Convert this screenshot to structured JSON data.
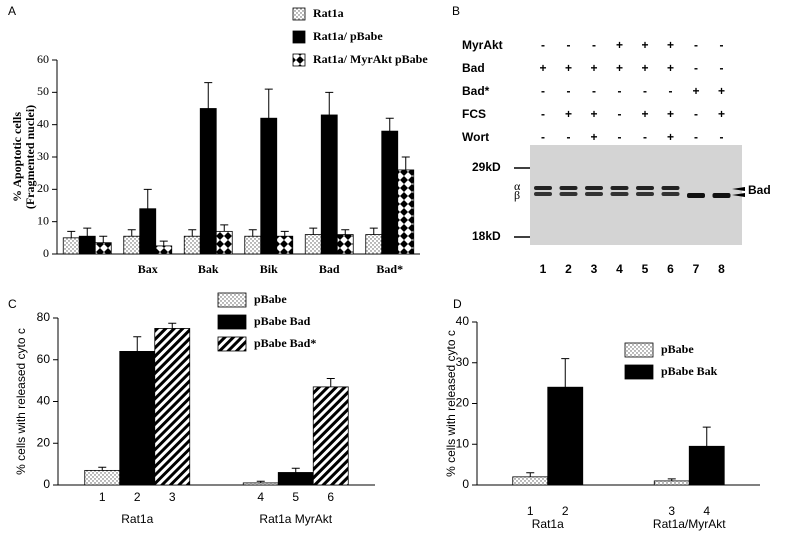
{
  "chart_data": [
    {
      "type": "bar",
      "panel_label": "A",
      "ylabel": "% Apoptotic cells",
      "ylabel2": "(Fragmented nuclei)",
      "categories": [
        null,
        "Bax",
        "Bak",
        "Bik",
        "Bad",
        "Bad*"
      ],
      "series": [
        {
          "name": "Rat1a",
          "color": "#000000",
          "fill": "dotted",
          "values": [
            5,
            5.5,
            5.5,
            5.5,
            6,
            6
          ],
          "errors": [
            2,
            2,
            2,
            2,
            2,
            2
          ]
        },
        {
          "name": "Rat1a/ pBabe",
          "color": "#000000",
          "fill": "solid",
          "values": [
            5.5,
            14,
            45,
            42,
            43,
            38
          ],
          "errors": [
            2.5,
            6,
            8,
            9,
            7,
            4
          ]
        },
        {
          "name": "Rat1a/ MyrAkt pBabe",
          "color": "#000000",
          "fill": "checker",
          "values": [
            3.5,
            2.5,
            7,
            5.5,
            6,
            26
          ],
          "errors": [
            2,
            1.5,
            2,
            1.5,
            1.5,
            4
          ]
        }
      ],
      "ylim": [
        0,
        60
      ],
      "yticks": [
        0,
        10,
        20,
        30,
        40,
        50,
        60
      ]
    },
    {
      "type": "blot",
      "panel_label": "B",
      "rows": [
        {
          "label": "MyrAkt",
          "signs": [
            "-",
            "-",
            "-",
            "+",
            "+",
            "+",
            "-",
            "-"
          ]
        },
        {
          "label": "Bad",
          "signs": [
            "+",
            "+",
            "+",
            "+",
            "+",
            "+",
            "-",
            "-"
          ]
        },
        {
          "label": "Bad*",
          "signs": [
            "-",
            "-",
            "-",
            "-",
            "-",
            "-",
            "+",
            "+"
          ]
        },
        {
          "label": "FCS",
          "signs": [
            "-",
            "+",
            "+",
            "-",
            "+",
            "+",
            "-",
            "+"
          ]
        },
        {
          "label": "Wort",
          "signs": [
            "-",
            "-",
            "+",
            "-",
            "-",
            "+",
            "-",
            "-"
          ]
        }
      ],
      "markers": [
        "29kD",
        "18kD"
      ],
      "band_labels": [
        "α",
        "β"
      ],
      "protein": "Bad",
      "lanes": [
        "1",
        "2",
        "3",
        "4",
        "5",
        "6",
        "7",
        "8"
      ]
    },
    {
      "type": "bar",
      "panel_label": "C",
      "ylabel": "% cells with released cyto c",
      "categories": [
        "Rat1a",
        "Rat1a MyrAkt"
      ],
      "bar_labels": [
        "1",
        "2",
        "3",
        "4",
        "5",
        "6"
      ],
      "series": [
        {
          "name": "pBabe",
          "color": "#000000",
          "fill": "dotted",
          "values": [
            7,
            1
          ],
          "errors": [
            1.5,
            0.8
          ]
        },
        {
          "name": "pBabe Bad",
          "color": "#000000",
          "fill": "solid",
          "values": [
            64,
            6
          ],
          "errors": [
            7,
            2
          ]
        },
        {
          "name": "pBabe Bad*",
          "color": "#000000",
          "fill": "hatched",
          "values": [
            75,
            47
          ],
          "errors": [
            2.5,
            4
          ]
        }
      ],
      "ylim": [
        0,
        80
      ],
      "yticks": [
        0,
        20,
        40,
        60,
        80
      ]
    },
    {
      "type": "bar",
      "panel_label": "D",
      "ylabel": "% cells with released cyto c",
      "categories": [
        "Rat1a",
        "Rat1a/MyrAkt"
      ],
      "bar_labels": [
        "1",
        "2",
        "3",
        "4"
      ],
      "series": [
        {
          "name": "pBabe",
          "color": "#000000",
          "fill": "dotted",
          "values": [
            2,
            1
          ],
          "errors": [
            1,
            0.5
          ]
        },
        {
          "name": "pBabe Bak",
          "color": "#000000",
          "fill": "solid",
          "values": [
            24,
            9.5
          ],
          "errors": [
            7,
            4.7
          ]
        }
      ],
      "ylim": [
        0,
        40
      ],
      "yticks": [
        0,
        10,
        20,
        30,
        40
      ]
    }
  ]
}
